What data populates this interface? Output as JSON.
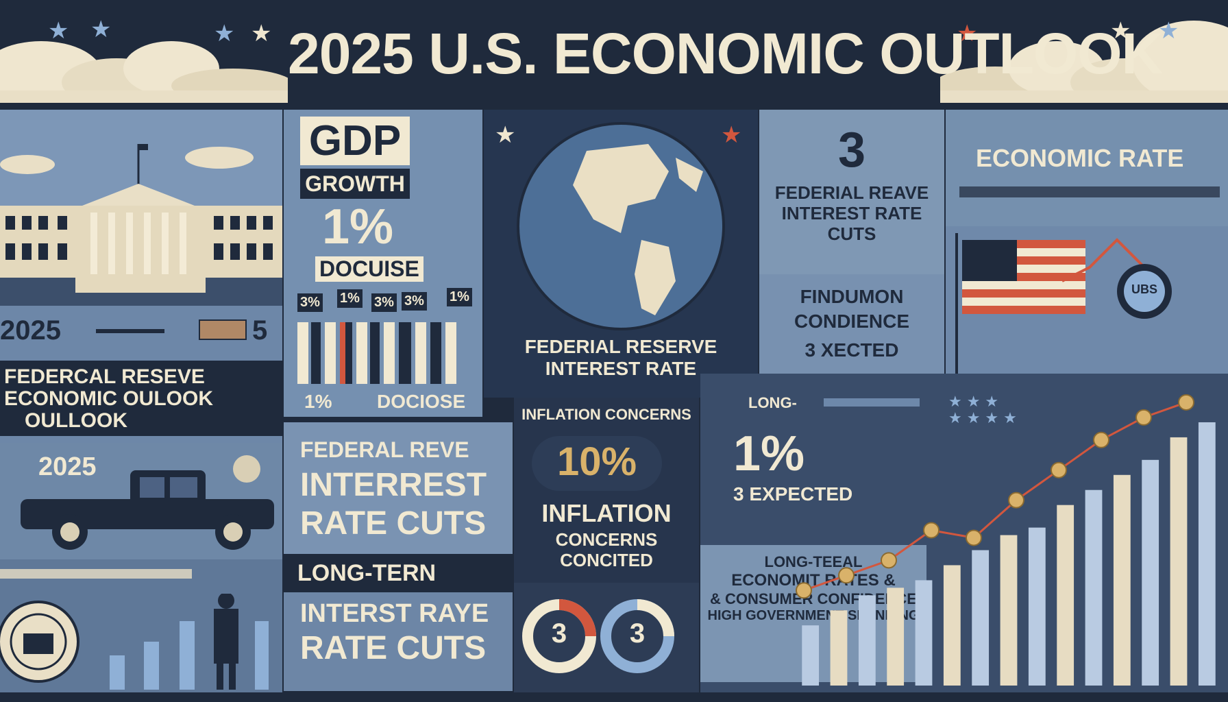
{
  "header": {
    "title": "2025 U.S. ECONOMIC OUTLOOK"
  },
  "colors": {
    "background": "#1f2a3c",
    "cream": "#f1e9d2",
    "slate_blue": "#7590b0",
    "accent_red": "#d2573e",
    "accent_gold": "#d9b26a"
  },
  "left_column": {
    "year_label": "2025",
    "year_suffix": "5",
    "fed_box": {
      "line1": "FEDERCAL RESEVE",
      "line2": "ECONOMIC OULOOK",
      "line3": "OULLOOK"
    },
    "car_year": "2025"
  },
  "gdp_panel": {
    "title": "GDP",
    "subtitle": "GROWTH",
    "value": "1%",
    "value_caption": "DOCUISE",
    "bar_labels": [
      "3%",
      "1%",
      "3%",
      "3%",
      "1%"
    ],
    "bottom_value": "1%",
    "bottom_caption": "DOCIOSE"
  },
  "globe_panel": {
    "line1": "FEDERIAL RESERVE",
    "line2": "INTEREST RATE"
  },
  "fed_cuts_panel": {
    "number": "3",
    "line1": "FEDERIAL REAVE",
    "line2": "INTEREST RATE",
    "line3": "CUTS"
  },
  "fin_panel": {
    "line1": "FINDUMON",
    "line2": "CONDIENCE",
    "line3": "3 XECTED"
  },
  "econ_rate_panel": {
    "title": "ECONOMIC RATE"
  },
  "flag_panel": {
    "badge": "UBS"
  },
  "fed_reve_panel": {
    "line1": "FEDERAL REVE",
    "line2": "INTERREST",
    "line3": "RATE CUTS"
  },
  "long_term_panel": {
    "tag": "LONG-TERN",
    "line1": "INTERST RAYE",
    "line2": "RATE CUTS"
  },
  "inflation_panel": {
    "heading": "INFLATION CONCERNS",
    "value": "10%",
    "line1": "INFLATION",
    "line2": "CONCERNS",
    "line3": "CONCITED"
  },
  "circles_panel": {
    "left_number": "3",
    "right_number": "3"
  },
  "chart_panel": {
    "header": "LONG-",
    "value": "1%",
    "expected": "3 EXPECTED",
    "caption1": "LONG-TEEAL",
    "caption2": "ECONOMIT RATES &",
    "caption3": "& CONSUMER CONFIDENCE",
    "caption4": "HIGH GOVERNMENT SPENDING"
  },
  "chart_data": {
    "type": "bar",
    "values": [
      8,
      10,
      12,
      13,
      14,
      16,
      18,
      20,
      21,
      24,
      26,
      28,
      30,
      33,
      35
    ],
    "line_values": [
      9,
      11,
      13,
      17,
      16,
      21,
      25,
      29,
      32,
      34
    ]
  }
}
